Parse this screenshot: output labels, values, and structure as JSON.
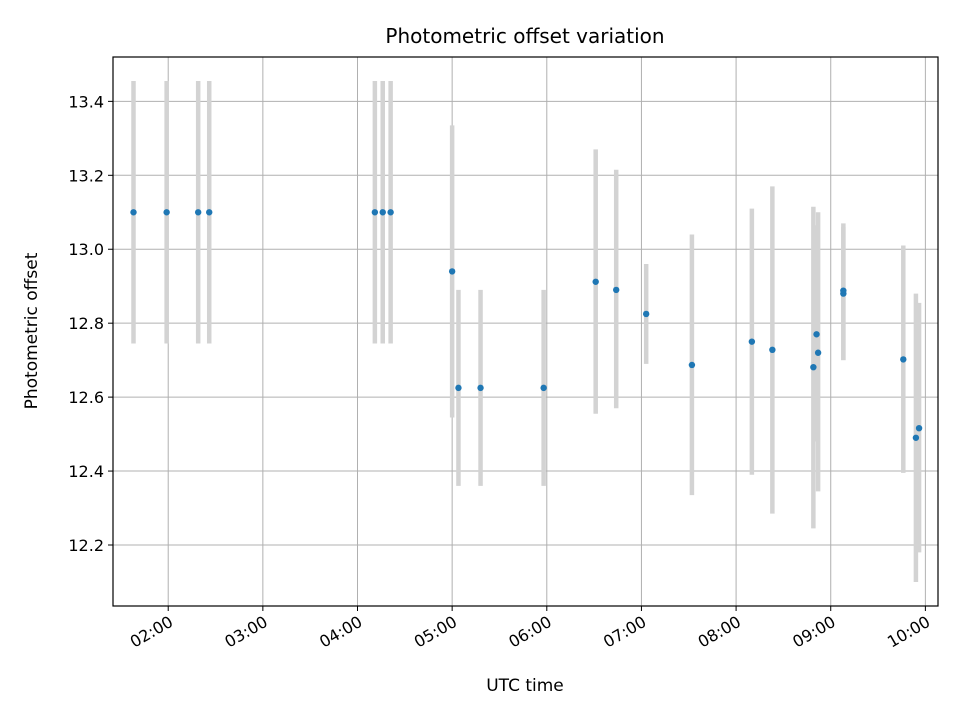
{
  "chart_data": {
    "type": "scatter",
    "title": "Photometric offset variation",
    "xlabel": "UTC time",
    "ylabel": "Photometric offset",
    "xlim": [
      "01:25",
      "10:08"
    ],
    "ylim": [
      12.035,
      13.52
    ],
    "grid": true,
    "x_ticks": [
      "02:00",
      "03:00",
      "04:00",
      "05:00",
      "06:00",
      "07:00",
      "08:00",
      "09:00",
      "10:00"
    ],
    "y_ticks": [
      "12.2",
      "12.4",
      "12.6",
      "12.8",
      "13.0",
      "13.2",
      "13.4"
    ],
    "colors": {
      "point": "#1f77b4",
      "errorbar": "#d3d3d3",
      "grid": "#b0b0b0"
    },
    "points": [
      {
        "x": "01:38",
        "y": 13.1,
        "ylow": 12.745,
        "yhigh": 13.455
      },
      {
        "x": "01:59",
        "y": 13.1,
        "ylow": 12.745,
        "yhigh": 13.455
      },
      {
        "x": "02:19",
        "y": 13.1,
        "ylow": 12.745,
        "yhigh": 13.455
      },
      {
        "x": "02:26",
        "y": 13.1,
        "ylow": 12.745,
        "yhigh": 13.455
      },
      {
        "x": "04:11",
        "y": 13.1,
        "ylow": 12.745,
        "yhigh": 13.455
      },
      {
        "x": "04:16",
        "y": 13.1,
        "ylow": 12.745,
        "yhigh": 13.455
      },
      {
        "x": "04:21",
        "y": 13.1,
        "ylow": 12.745,
        "yhigh": 13.455
      },
      {
        "x": "05:00",
        "y": 12.94,
        "ylow": 12.545,
        "yhigh": 13.335
      },
      {
        "x": "05:04",
        "y": 12.625,
        "ylow": 12.36,
        "yhigh": 12.89
      },
      {
        "x": "05:18",
        "y": 12.625,
        "ylow": 12.36,
        "yhigh": 12.89
      },
      {
        "x": "05:58",
        "y": 12.625,
        "ylow": 12.36,
        "yhigh": 12.89
      },
      {
        "x": "06:31",
        "y": 12.912,
        "ylow": 12.555,
        "yhigh": 13.27
      },
      {
        "x": "06:44",
        "y": 12.89,
        "ylow": 12.57,
        "yhigh": 13.215
      },
      {
        "x": "07:03",
        "y": 12.825,
        "ylow": 12.69,
        "yhigh": 12.96
      },
      {
        "x": "07:32",
        "y": 12.687,
        "ylow": 12.335,
        "yhigh": 13.04
      },
      {
        "x": "08:10",
        "y": 12.75,
        "ylow": 12.39,
        "yhigh": 13.11
      },
      {
        "x": "08:23",
        "y": 12.728,
        "ylow": 12.285,
        "yhigh": 13.17
      },
      {
        "x": "08:49",
        "y": 12.681,
        "ylow": 12.245,
        "yhigh": 13.115
      },
      {
        "x": "08:51",
        "y": 12.77,
        "ylow": 12.48,
        "yhigh": 13.065
      },
      {
        "x": "08:52",
        "y": 12.72,
        "ylow": 12.345,
        "yhigh": 13.1
      },
      {
        "x": "09:08",
        "y": 12.888,
        "ylow": 12.7,
        "yhigh": 13.07
      },
      {
        "x": "09:08",
        "y": 12.88,
        "ylow": 12.7,
        "yhigh": 13.06
      },
      {
        "x": "09:46",
        "y": 12.702,
        "ylow": 12.395,
        "yhigh": 13.01
      },
      {
        "x": "09:54",
        "y": 12.49,
        "ylow": 12.1,
        "yhigh": 12.88
      },
      {
        "x": "09:56",
        "y": 12.516,
        "ylow": 12.18,
        "yhigh": 12.855
      }
    ]
  }
}
